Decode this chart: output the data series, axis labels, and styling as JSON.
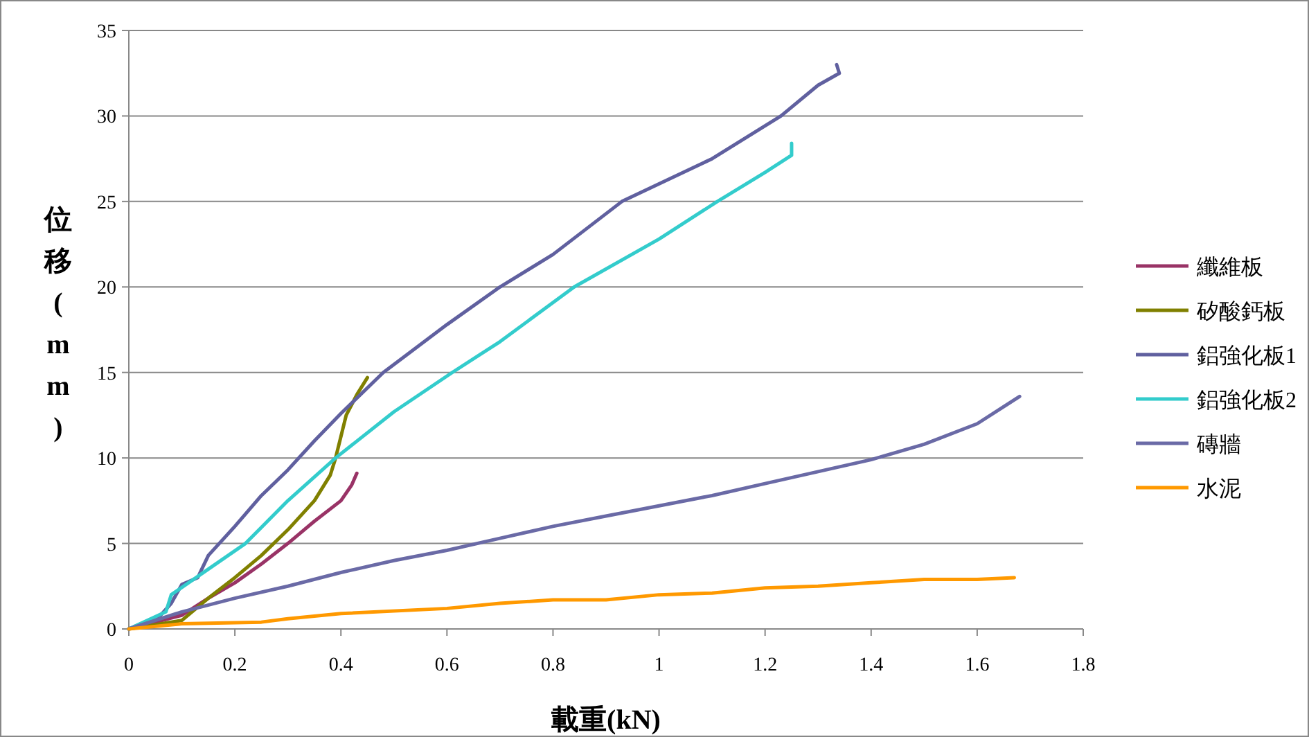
{
  "chart_data": {
    "type": "line",
    "xlabel": "載重(kN)",
    "ylabel": "位移(mm)",
    "xlim": [
      0,
      1.8
    ],
    "ylim": [
      0,
      35
    ],
    "xticks": [
      0,
      0.2,
      0.4,
      0.6,
      0.8,
      1,
      1.2,
      1.4,
      1.6,
      1.8
    ],
    "yticks": [
      0,
      5,
      10,
      15,
      20,
      25,
      30,
      35
    ],
    "grid": "y",
    "legend": "right",
    "line_style": "solid",
    "series": [
      {
        "name": "纖維板",
        "color": "#993366",
        "x": [
          0,
          0.1,
          0.15,
          0.2,
          0.25,
          0.3,
          0.35,
          0.4,
          0.42,
          0.43
        ],
        "values": [
          0,
          0.8,
          1.8,
          2.7,
          3.8,
          5,
          6.3,
          7.5,
          8.4,
          9.1
        ]
      },
      {
        "name": "矽酸鈣板",
        "color": "#808000",
        "x": [
          0,
          0.1,
          0.15,
          0.2,
          0.25,
          0.3,
          0.35,
          0.38,
          0.39,
          0.41,
          0.43,
          0.45
        ],
        "values": [
          0,
          0.5,
          1.8,
          3,
          4.3,
          5.8,
          7.5,
          9,
          10,
          12.5,
          13.7,
          14.7
        ]
      },
      {
        "name": "鋁強化板1",
        "color": "#60609f",
        "x": [
          0,
          0.06,
          0.08,
          0.1,
          0.13,
          0.15,
          0.2,
          0.25,
          0.3,
          0.35,
          0.4,
          0.48,
          0.6,
          0.7,
          0.8,
          0.93,
          1.1,
          1.23,
          1.3,
          1.34,
          1.335
        ],
        "values": [
          0,
          0.8,
          1.5,
          2.6,
          3,
          4.3,
          6,
          7.8,
          9.3,
          11,
          12.6,
          15,
          17.8,
          20,
          21.9,
          25,
          27.5,
          30,
          31.8,
          32.5,
          33
        ]
      },
      {
        "name": "鋁強化板2",
        "color": "#33cccc",
        "x": [
          0,
          0.07,
          0.08,
          0.15,
          0.22,
          0.3,
          0.39,
          0.5,
          0.61,
          0.7,
          0.84,
          1,
          1.11,
          1.2,
          1.25,
          1.25
        ],
        "values": [
          0,
          1,
          2,
          3.5,
          5,
          7.5,
          10,
          12.7,
          15,
          16.8,
          20,
          22.8,
          25,
          26.7,
          27.7,
          28.4
        ]
      },
      {
        "name": "磚牆",
        "color": "#6a6aa6",
        "x": [
          0,
          0.1,
          0.2,
          0.3,
          0.4,
          0.5,
          0.6,
          0.7,
          0.8,
          0.9,
          1,
          1.1,
          1.2,
          1.3,
          1.4,
          1.5,
          1.6,
          1.65,
          1.68
        ],
        "values": [
          0,
          1,
          1.8,
          2.5,
          3.3,
          4,
          4.6,
          5.3,
          6,
          6.6,
          7.2,
          7.8,
          8.5,
          9.2,
          9.9,
          10.8,
          12,
          13,
          13.6
        ]
      },
      {
        "name": "水泥",
        "color": "#ff9900",
        "x": [
          0,
          0.1,
          0.25,
          0.3,
          0.4,
          0.6,
          0.7,
          0.8,
          0.9,
          1,
          1.1,
          1.2,
          1.3,
          1.4,
          1.5,
          1.6,
          1.67
        ],
        "values": [
          0,
          0.3,
          0.4,
          0.6,
          0.9,
          1.2,
          1.5,
          1.7,
          1.7,
          2,
          2.1,
          2.4,
          2.5,
          2.7,
          2.9,
          2.9,
          3
        ]
      }
    ]
  }
}
